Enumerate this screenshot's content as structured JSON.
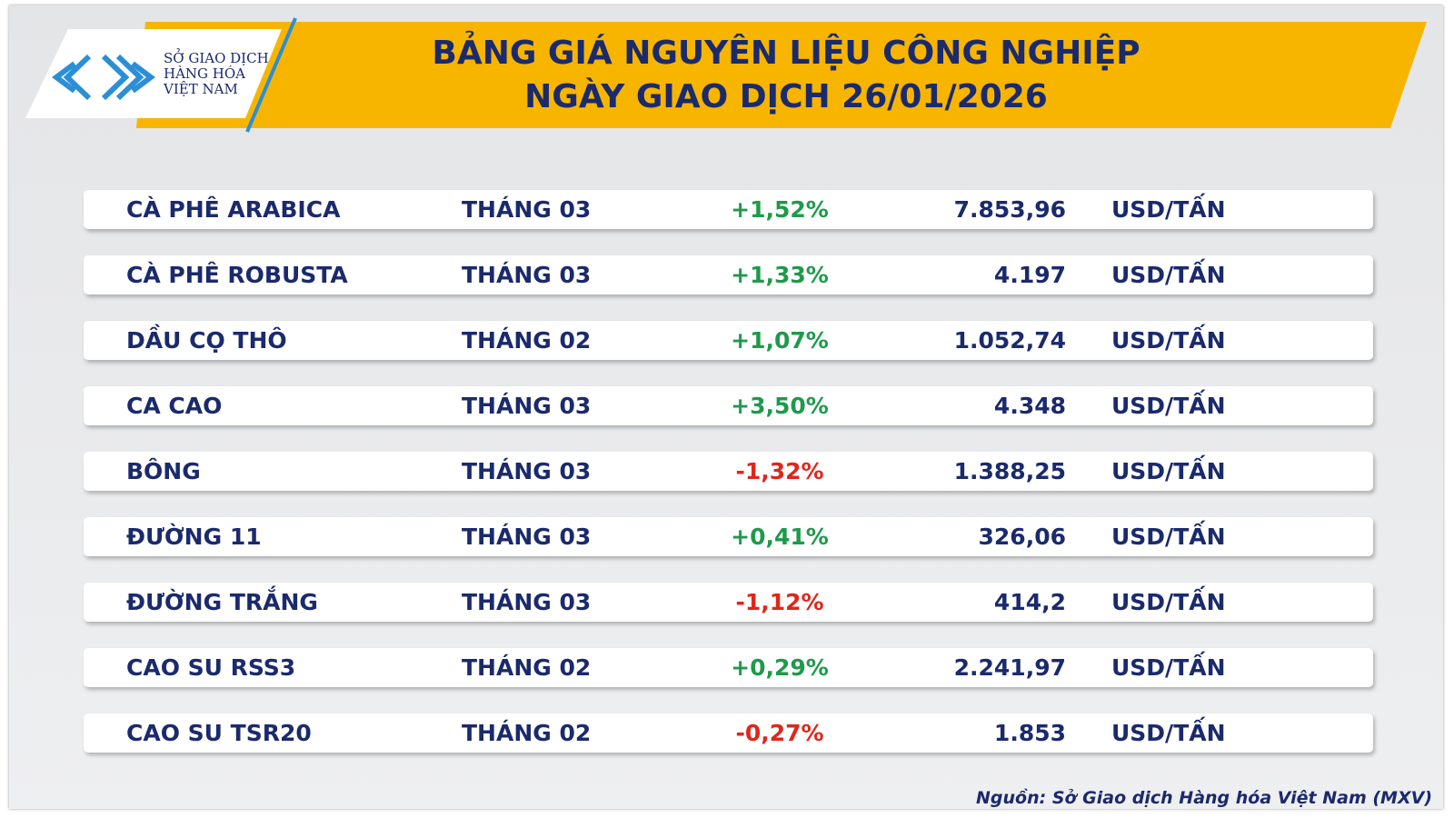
{
  "logo": {
    "lines": [
      "SỞ GIAO DỊCH",
      "HÀNG HÓA",
      "VIỆT NAM"
    ]
  },
  "header": {
    "title": "BẢNG GIÁ NGUYÊN LIỆU CÔNG NGHIỆP",
    "subtitle": "NGÀY GIAO DỊCH 26/01/2026"
  },
  "table": {
    "rows": [
      [
        "CÀ PHÊ ARABICA",
        "THÁNG 03",
        "+1,52%",
        "7.853,96",
        "USD/TẤN"
      ],
      [
        "CÀ PHÊ ROBUSTA",
        "THÁNG 03",
        "+1,33%",
        "4.197",
        "USD/TẤN"
      ],
      [
        "DẦU CỌ THÔ",
        "THÁNG 02",
        "+1,07%",
        "1.052,74",
        "USD/TẤN"
      ],
      [
        "CA CAO",
        "THÁNG 03",
        "+3,50%",
        "4.348",
        "USD/TẤN"
      ],
      [
        "BÔNG",
        "THÁNG 03",
        "-1,32%",
        "1.388,25",
        "USD/TẤN"
      ],
      [
        "ĐƯỜNG 11",
        "THÁNG 03",
        "+0,41%",
        "326,06",
        "USD/TẤN"
      ],
      [
        "ĐƯỜNG TRẮNG",
        "THÁNG 03",
        "-1,12%",
        "414,2",
        "USD/TẤN"
      ],
      [
        "CAO SU RSS3",
        "THÁNG 02",
        "+0,29%",
        "2.241,97",
        "USD/TẤN"
      ],
      [
        "CAO SU TSR20",
        "THÁNG 02",
        "-0,27%",
        "1.853",
        "USD/TẤN"
      ]
    ]
  },
  "footer": {
    "source": "Nguồn: Sở Giao dịch Hàng hóa Việt Nam (MXV)"
  }
}
